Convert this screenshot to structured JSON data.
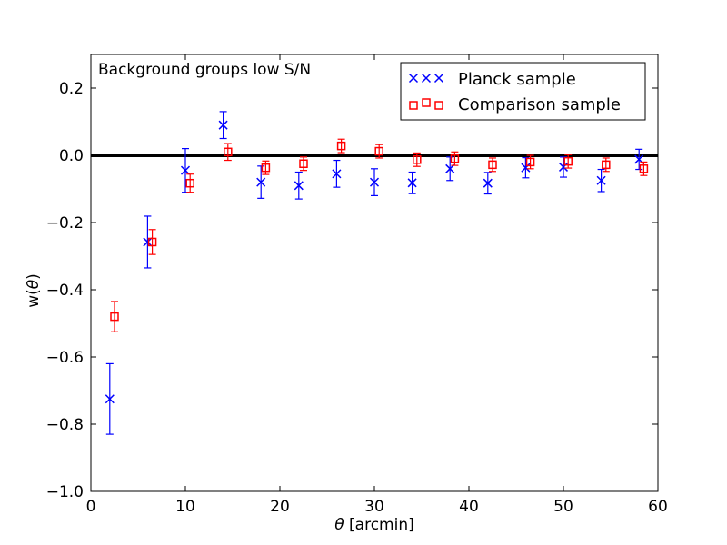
{
  "chart_data": {
    "type": "scatter",
    "annotation": "Background groups low S/N",
    "xlabel": "θ [arcmin]",
    "xlabel_symbol": "θ",
    "xlabel_unit": " [arcmin]",
    "ylabel": "w(θ)",
    "ylabel_prefix": "w(",
    "ylabel_symbol": "θ",
    "ylabel_suffix": ")",
    "xlim": [
      0,
      60
    ],
    "ylim": [
      -1.0,
      0.3
    ],
    "xticks": [
      0,
      10,
      20,
      30,
      40,
      50,
      60
    ],
    "xtick_labels": [
      "0",
      "10",
      "20",
      "30",
      "40",
      "50",
      "60"
    ],
    "yticks": [
      -1.0,
      -0.8,
      -0.6,
      -0.4,
      -0.2,
      0.0,
      0.2
    ],
    "ytick_labels": [
      "−1.0",
      "−0.8",
      "−0.6",
      "−0.4",
      "−0.2",
      "0.0",
      "0.2"
    ],
    "reference_line": 0.0,
    "legend_position": "top-right",
    "series": [
      {
        "name": "Planck sample",
        "marker": "x",
        "color": "#0000ff",
        "x": [
          2,
          6,
          10,
          14,
          18,
          22,
          26,
          30,
          34,
          38,
          42,
          46,
          50,
          54,
          58
        ],
        "y": [
          -0.725,
          -0.258,
          -0.045,
          0.09,
          -0.08,
          -0.09,
          -0.055,
          -0.08,
          -0.082,
          -0.04,
          -0.083,
          -0.037,
          -0.035,
          -0.075,
          -0.012
        ],
        "err": [
          0.105,
          0.077,
          0.065,
          0.04,
          0.048,
          0.04,
          0.04,
          0.04,
          0.032,
          0.035,
          0.032,
          0.03,
          0.03,
          0.033,
          0.03
        ]
      },
      {
        "name": "Comparison sample",
        "marker": "s",
        "color": "#ff0000",
        "x": [
          2.5,
          6.5,
          10.5,
          14.5,
          18.5,
          22.5,
          26.5,
          30.5,
          34.5,
          38.5,
          42.5,
          46.5,
          50.5,
          54.5,
          58.5
        ],
        "y": [
          -0.48,
          -0.258,
          -0.083,
          0.01,
          -0.037,
          -0.025,
          0.028,
          0.012,
          -0.013,
          -0.01,
          -0.028,
          -0.02,
          -0.018,
          -0.028,
          -0.04
        ],
        "err": [
          0.045,
          0.037,
          0.027,
          0.025,
          0.02,
          0.02,
          0.02,
          0.02,
          0.02,
          0.02,
          0.02,
          0.02,
          0.02,
          0.02,
          0.02
        ]
      }
    ]
  }
}
